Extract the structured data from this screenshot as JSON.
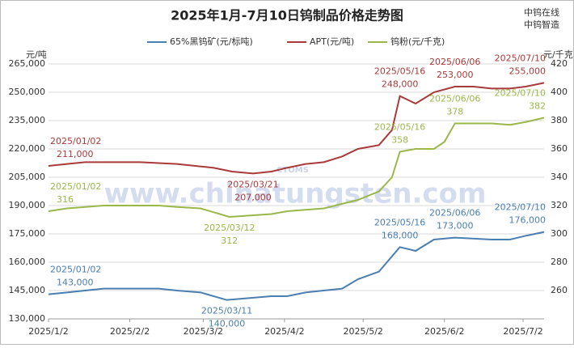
{
  "chart_data": {
    "type": "line",
    "title": "2025年1月-7月10日钨制品价格走势图",
    "brand": [
      "中钨在线",
      "中钨智造"
    ],
    "watermark": "www.chinatungsten.com",
    "watermark_logo": "CTOMS",
    "y_label": "元/吨",
    "y2_label": "元/千克",
    "xlim": [
      "2025/1/2",
      "2025/7/10"
    ],
    "xticks": [
      "2025/1/2",
      "2025/2/2",
      "2025/3/2",
      "2025/4/2",
      "2025/5/2",
      "2025/6/2",
      "2025/7/2"
    ],
    "ylim": [
      130000,
      265000
    ],
    "yticks": [
      {
        "value": 130000,
        "label": "130,000"
      },
      {
        "value": 145000,
        "label": "145,000"
      },
      {
        "value": 160000,
        "label": "160,000"
      },
      {
        "value": 175000,
        "label": "175,000"
      },
      {
        "value": 190000,
        "label": "190,000"
      },
      {
        "value": 205000,
        "label": "205,000"
      },
      {
        "value": 220000,
        "label": "220,000"
      },
      {
        "value": 235000,
        "label": "235,000"
      },
      {
        "value": 250000,
        "label": "250,000"
      },
      {
        "value": 265000,
        "label": "265,000"
      }
    ],
    "y2lim": [
      240,
      420
    ],
    "y2ticks": [
      260,
      280,
      300,
      320,
      340,
      360,
      380,
      400,
      420
    ],
    "grid": true,
    "series": [
      {
        "name": "65%黑钨矿(元/标吨)",
        "color": "#4a7eb0",
        "axis": "y",
        "x": [
          "2025/1/2",
          "2025/1/9",
          "2025/1/23",
          "2025/2/13",
          "2025/2/20",
          "2025/3/1",
          "2025/3/11",
          "2025/3/28",
          "2025/4/3",
          "2025/4/10",
          "2025/4/24",
          "2025/4/30",
          "2025/5/8",
          "2025/5/16",
          "2025/5/22",
          "2025/5/29",
          "2025/6/6",
          "2025/6/20",
          "2025/6/27",
          "2025/7/3",
          "2025/7/10"
        ],
        "values": [
          143000,
          144000,
          146000,
          146000,
          145000,
          144000,
          140000,
          142000,
          142000,
          144000,
          146000,
          151000,
          155000,
          168000,
          166000,
          172000,
          173000,
          172000,
          172000,
          174000,
          176000
        ],
        "date_labels": [
          "2025/01/02",
          null,
          null,
          null,
          null,
          null,
          "2025/03/11",
          null,
          null,
          null,
          null,
          null,
          null,
          "2025/05/16",
          null,
          null,
          "2025/06/06",
          null,
          null,
          null,
          "2025/07/10"
        ],
        "value_labels": [
          "143,000",
          null,
          null,
          null,
          null,
          null,
          "140,000",
          null,
          null,
          null,
          null,
          null,
          null,
          "168,000",
          null,
          null,
          "173,000",
          null,
          null,
          null,
          "176,000"
        ]
      },
      {
        "name": "APT(元/吨)",
        "color": "#a83a3a",
        "axis": "y",
        "x": [
          "2025/1/2",
          "2025/1/9",
          "2025/1/16",
          "2025/2/6",
          "2025/2/20",
          "2025/2/27",
          "2025/3/6",
          "2025/3/13",
          "2025/3/21",
          "2025/3/28",
          "2025/4/3",
          "2025/4/10",
          "2025/4/17",
          "2025/4/24",
          "2025/4/30",
          "2025/5/8",
          "2025/5/13",
          "2025/5/16",
          "2025/5/22",
          "2025/5/29",
          "2025/6/6",
          "2025/6/13",
          "2025/6/20",
          "2025/6/27",
          "2025/7/3",
          "2025/7/10"
        ],
        "values": [
          211000,
          212000,
          213000,
          213000,
          212000,
          211000,
          210000,
          208000,
          207000,
          208000,
          210000,
          212000,
          213000,
          216000,
          220000,
          222000,
          230000,
          248000,
          244000,
          250000,
          253000,
          253000,
          252000,
          252000,
          253000,
          255000
        ],
        "date_labels": [
          "2025/01/02",
          null,
          null,
          null,
          null,
          null,
          null,
          null,
          "2025/03/21",
          null,
          null,
          null,
          null,
          null,
          null,
          null,
          null,
          "2025/05/16",
          null,
          null,
          "2025/06/06",
          null,
          null,
          null,
          null,
          "2025/07/10"
        ],
        "value_labels": [
          "211,000",
          null,
          null,
          null,
          null,
          null,
          null,
          null,
          "207,000",
          null,
          null,
          null,
          null,
          null,
          null,
          null,
          null,
          "248,000",
          null,
          null,
          "253,000",
          null,
          null,
          null,
          null,
          "255,000"
        ]
      },
      {
        "name": "钨粉(元/千克)",
        "color": "#9ab84a",
        "axis": "y2",
        "x": [
          "2025/1/2",
          "2025/1/9",
          "2025/1/23",
          "2025/2/13",
          "2025/2/20",
          "2025/3/1",
          "2025/3/12",
          "2025/3/28",
          "2025/4/3",
          "2025/4/17",
          "2025/4/30",
          "2025/5/8",
          "2025/5/13",
          "2025/5/16",
          "2025/5/22",
          "2025/5/29",
          "2025/6/2",
          "2025/6/6",
          "2025/6/20",
          "2025/6/27",
          "2025/7/3",
          "2025/7/10"
        ],
        "values": [
          316,
          318,
          320,
          320,
          319,
          318,
          312,
          314,
          316,
          318,
          324,
          330,
          340,
          358,
          360,
          360,
          365,
          378,
          378,
          377,
          379,
          382
        ],
        "date_labels": [
          "2025/01/02",
          null,
          null,
          null,
          null,
          null,
          "2025/03/12",
          null,
          null,
          null,
          null,
          null,
          null,
          "2025/05/16",
          null,
          null,
          null,
          "2025/06/06",
          null,
          null,
          null,
          "2025/07/10"
        ],
        "value_labels": [
          "316",
          null,
          null,
          null,
          null,
          null,
          "312",
          null,
          null,
          null,
          null,
          null,
          null,
          "358",
          null,
          null,
          null,
          "378",
          null,
          null,
          null,
          "382"
        ]
      }
    ]
  }
}
